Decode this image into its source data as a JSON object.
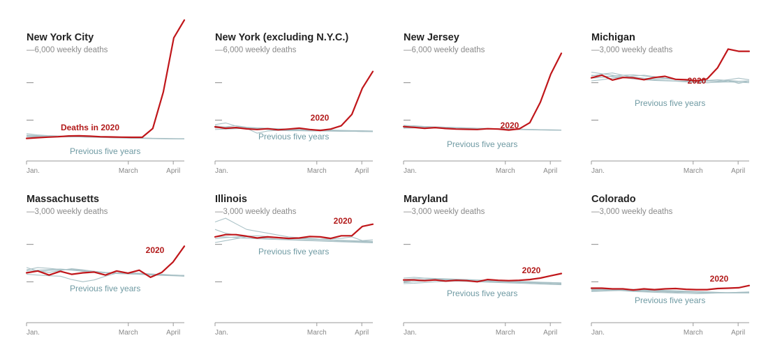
{
  "colors": {
    "current": "#c0161a",
    "previous": "#a9c1c6",
    "axis": "#999999",
    "tick": "#555555"
  },
  "chart_data": [
    {
      "type": "line",
      "title": "New York City",
      "scale_label": "6,000 weekly deaths",
      "ymax": 6000,
      "x_labels": [
        "Jan.",
        "March",
        "April"
      ],
      "current_label": "Deaths in 2020",
      "previous_label": "Previous five years",
      "series": [
        {
          "name": "Deaths in 2020",
          "values": [
            1020,
            1060,
            1090,
            1110,
            1150,
            1160,
            1140,
            1110,
            1100,
            1090,
            1080,
            1080,
            1550,
            3500,
            6400,
            7350
          ]
        },
        {
          "values": [
            1200,
            1170,
            1140,
            1130,
            1120,
            1110,
            1100,
            1080,
            1060,
            1040,
            1030,
            1020,
            1010,
            1000,
            1000,
            1000
          ]
        },
        {
          "values": [
            1150,
            1130,
            1120,
            1110,
            1100,
            1100,
            1090,
            1070,
            1060,
            1050,
            1040,
            1030,
            1020,
            1010,
            1010,
            1000
          ]
        },
        {
          "values": [
            1280,
            1210,
            1170,
            1150,
            1130,
            1110,
            1100,
            1090,
            1080,
            1060,
            1050,
            1040,
            1020,
            1010,
            1000,
            1000
          ]
        },
        {
          "values": [
            1100,
            1100,
            1110,
            1120,
            1110,
            1100,
            1090,
            1080,
            1070,
            1060,
            1050,
            1040,
            1030,
            1020,
            1010,
            1010
          ]
        },
        {
          "values": [
            1180,
            1160,
            1150,
            1140,
            1120,
            1110,
            1090,
            1080,
            1070,
            1050,
            1040,
            1030,
            1020,
            1010,
            1000,
            990
          ]
        }
      ]
    },
    {
      "type": "line",
      "title": "New York (excluding N.Y.C.)",
      "scale_label": "6,000 weekly deaths",
      "ymax": 6000,
      "x_labels": [
        "Jan.",
        "March",
        "April"
      ],
      "current_label": "2020",
      "previous_label": "Previous five years",
      "series": [
        {
          "name": "2020",
          "values": [
            1640,
            1560,
            1600,
            1530,
            1500,
            1540,
            1480,
            1520,
            1570,
            1500,
            1450,
            1520,
            1700,
            2300,
            3700,
            4600
          ]
        },
        {
          "values": [
            1760,
            1850,
            1680,
            1600,
            1550,
            1500,
            1480,
            1460,
            1450,
            1440,
            1450,
            1430,
            1420,
            1400,
            1390,
            1380
          ]
        },
        {
          "values": [
            1600,
            1640,
            1700,
            1620,
            1580,
            1560,
            1520,
            1500,
            1480,
            1470,
            1460,
            1450,
            1440,
            1430,
            1420,
            1400
          ]
        },
        {
          "values": [
            1700,
            1620,
            1580,
            1560,
            1300,
            1420,
            1450,
            1430,
            1430,
            1420,
            1420,
            1410,
            1400,
            1400,
            1390,
            1400
          ]
        },
        {
          "values": [
            1580,
            1600,
            1620,
            1600,
            1580,
            1560,
            1540,
            1520,
            1500,
            1490,
            1480,
            1470,
            1450,
            1440,
            1430,
            1420
          ]
        },
        {
          "values": [
            1500,
            1520,
            1540,
            1560,
            1560,
            1540,
            1520,
            1500,
            1480,
            1470,
            1460,
            1440,
            1430,
            1420,
            1410,
            1400
          ]
        }
      ]
    },
    {
      "type": "line",
      "title": "New Jersey",
      "scale_label": "6,000 weekly deaths",
      "ymax": 6000,
      "x_labels": [
        "Jan.",
        "March",
        "April"
      ],
      "current_label": "2020",
      "previous_label": "Previous five years",
      "series": [
        {
          "name": "2020",
          "values": [
            1650,
            1610,
            1560,
            1600,
            1550,
            1520,
            1510,
            1500,
            1540,
            1520,
            1470,
            1530,
            1860,
            2950,
            4460,
            5570
          ]
        },
        {
          "values": [
            1680,
            1700,
            1660,
            1640,
            1620,
            1600,
            1580,
            1560,
            1550,
            1540,
            1530,
            1520,
            1500,
            1480,
            1470,
            1460
          ]
        },
        {
          "values": [
            1600,
            1620,
            1640,
            1620,
            1600,
            1580,
            1560,
            1540,
            1530,
            1520,
            1510,
            1500,
            1490,
            1480,
            1470,
            1460
          ]
        },
        {
          "values": [
            1720,
            1680,
            1650,
            1630,
            1610,
            1590,
            1570,
            1550,
            1540,
            1530,
            1520,
            1510,
            1500,
            1490,
            1480,
            1470
          ]
        },
        {
          "values": [
            1560,
            1580,
            1600,
            1610,
            1600,
            1580,
            1560,
            1540,
            1520,
            1510,
            1500,
            1490,
            1480,
            1470,
            1460,
            1460
          ]
        },
        {
          "values": [
            1640,
            1650,
            1640,
            1630,
            1620,
            1600,
            1580,
            1560,
            1550,
            1540,
            1520,
            1510,
            1500,
            1490,
            1480,
            1470
          ]
        }
      ]
    },
    {
      "type": "line",
      "title": "Michigan",
      "scale_label": "3,000 weekly deaths",
      "ymax": 3000,
      "x_labels": [
        "Jan.",
        "March",
        "April"
      ],
      "current_label": "2020",
      "previous_label": "Previous five years",
      "series": [
        {
          "name": "2020",
          "values": [
            2130,
            2200,
            2070,
            2140,
            2130,
            2080,
            2140,
            2170,
            2090,
            2080,
            2050,
            2100,
            2400,
            2900,
            2840,
            2840
          ]
        },
        {
          "values": [
            2280,
            2240,
            2200,
            2160,
            2120,
            2100,
            2080,
            2060,
            2050,
            2040,
            2030,
            2060,
            2080,
            2060,
            2040,
            2030
          ]
        },
        {
          "values": [
            2180,
            2230,
            2260,
            2200,
            2150,
            2120,
            2110,
            2100,
            2090,
            2070,
            2060,
            2040,
            2050,
            2080,
            2120,
            2080
          ]
        },
        {
          "values": [
            2050,
            2080,
            2120,
            2150,
            2180,
            2200,
            2160,
            2120,
            2090,
            2060,
            2040,
            2000,
            2020,
            2060,
            1980,
            2040
          ]
        },
        {
          "values": [
            2200,
            2180,
            2160,
            2140,
            2100,
            2080,
            2060,
            2050,
            2040,
            2020,
            2010,
            2000,
            2010,
            2020,
            2010,
            2000
          ]
        },
        {
          "values": [
            2120,
            2140,
            2180,
            2200,
            2210,
            2180,
            2150,
            2120,
            2100,
            2080,
            2060,
            2050,
            2040,
            2030,
            2040,
            2050
          ]
        }
      ]
    },
    {
      "type": "line",
      "title": "Massachusetts",
      "scale_label": "3,000 weekly deaths",
      "ymax": 3000,
      "x_labels": [
        "Jan.",
        "March",
        "April"
      ],
      "current_label": "2020",
      "previous_label": "Previous five years",
      "series": [
        {
          "name": "2020",
          "values": [
            1240,
            1290,
            1180,
            1280,
            1200,
            1240,
            1260,
            1180,
            1290,
            1230,
            1310,
            1120,
            1250,
            1530,
            1950
          ]
        },
        {
          "values": [
            1320,
            1380,
            1360,
            1330,
            1310,
            1280,
            1260,
            1240,
            1220,
            1210,
            1200,
            1180,
            1170,
            1160,
            1150
          ]
        },
        {
          "values": [
            1380,
            1290,
            1250,
            1300,
            1350,
            1320,
            1280,
            1250,
            1230,
            1220,
            1210,
            1200,
            1190,
            1180,
            1170
          ]
        },
        {
          "values": [
            1260,
            1280,
            1300,
            1320,
            1340,
            1300,
            1280,
            1250,
            1240,
            1230,
            1220,
            1210,
            1190,
            1170,
            1160
          ]
        },
        {
          "values": [
            1300,
            1310,
            1330,
            1340,
            1320,
            1290,
            1260,
            1240,
            1220,
            1210,
            1200,
            1190,
            1200,
            1180,
            1170
          ]
        },
        {
          "values": [
            1200,
            1180,
            1160,
            1150,
            1060,
            1000,
            1050,
            1150,
            1230,
            1240,
            1230,
            1210,
            1190,
            1170,
            1150
          ]
        }
      ]
    },
    {
      "type": "line",
      "title": "Illinois",
      "scale_label": "3,000 weekly deaths",
      "ymax": 3000,
      "x_labels": [
        "Jan.",
        "March",
        "April"
      ],
      "current_label": "2020",
      "previous_label": "Previous five years",
      "series": [
        {
          "name": "2020",
          "values": [
            2200,
            2260,
            2260,
            2220,
            2170,
            2200,
            2180,
            2160,
            2170,
            2210,
            2200,
            2160,
            2230,
            2230,
            2480,
            2540
          ]
        },
        {
          "values": [
            2600,
            2700,
            2550,
            2400,
            2350,
            2300,
            2250,
            2200,
            2180,
            2160,
            2140,
            2120,
            2100,
            2090,
            2080,
            2070
          ]
        },
        {
          "values": [
            2400,
            2300,
            2250,
            2200,
            2180,
            2200,
            2190,
            2170,
            2150,
            2140,
            2130,
            2120,
            2110,
            2100,
            2090,
            2080
          ]
        },
        {
          "values": [
            2150,
            2180,
            2200,
            2220,
            2230,
            2210,
            2190,
            2170,
            2160,
            2150,
            2140,
            2150,
            2160,
            2200,
            2100,
            2120
          ]
        },
        {
          "values": [
            2050,
            2100,
            2150,
            2200,
            2180,
            2160,
            2140,
            2130,
            2120,
            2110,
            2100,
            2090,
            2080,
            2070,
            2060,
            2050
          ]
        },
        {
          "values": [
            2200,
            2200,
            2180,
            2160,
            2150,
            2140,
            2130,
            2120,
            2110,
            2100,
            2090,
            2080,
            2070,
            2060,
            2050,
            2040
          ]
        }
      ]
    },
    {
      "type": "line",
      "title": "Maryland",
      "scale_label": "3,000 weekly deaths",
      "ymax": 3000,
      "x_labels": [
        "Jan.",
        "March",
        "April"
      ],
      "current_label": "2020",
      "previous_label": "Previous five years",
      "series": [
        {
          "name": "2020",
          "values": [
            1050,
            1050,
            1030,
            1050,
            1020,
            1040,
            1030,
            1000,
            1060,
            1040,
            1030,
            1040,
            1060,
            1100,
            1160,
            1220
          ]
        },
        {
          "values": [
            1100,
            1120,
            1100,
            1080,
            1070,
            1060,
            1050,
            1040,
            1030,
            1020,
            1010,
            1000,
            990,
            980,
            980,
            970
          ]
        },
        {
          "values": [
            1060,
            1080,
            1100,
            1090,
            1080,
            1070,
            1060,
            1050,
            1040,
            1030,
            1020,
            1010,
            1000,
            990,
            980,
            970
          ]
        },
        {
          "values": [
            980,
            1000,
            1020,
            1040,
            1050,
            1040,
            1030,
            1020,
            1010,
            1000,
            990,
            980,
            970,
            960,
            950,
            940
          ]
        },
        {
          "values": [
            1020,
            1040,
            1060,
            1070,
            1060,
            1050,
            1040,
            1030,
            1020,
            1010,
            1000,
            990,
            980,
            970,
            960,
            950
          ]
        },
        {
          "values": [
            950,
            960,
            980,
            1000,
            1010,
            1020,
            1010,
            1000,
            990,
            980,
            970,
            960,
            950,
            940,
            930,
            920
          ]
        }
      ]
    },
    {
      "type": "line",
      "title": "Colorado",
      "scale_label": "3,000 weekly deaths",
      "ymax": 3000,
      "x_labels": [
        "Jan.",
        "March",
        "April"
      ],
      "current_label": "2020",
      "previous_label": "Previous five years",
      "series": [
        {
          "name": "2020",
          "values": [
            830,
            830,
            810,
            810,
            780,
            810,
            790,
            810,
            820,
            800,
            790,
            790,
            820,
            830,
            840,
            900
          ]
        },
        {
          "values": [
            800,
            810,
            800,
            790,
            780,
            770,
            760,
            750,
            740,
            730,
            720,
            720,
            710,
            710,
            720,
            720
          ]
        },
        {
          "values": [
            760,
            770,
            780,
            790,
            800,
            790,
            780,
            770,
            760,
            750,
            740,
            730,
            720,
            710,
            700,
            700
          ]
        },
        {
          "values": [
            820,
            800,
            780,
            760,
            740,
            730,
            720,
            710,
            700,
            690,
            680,
            690,
            700,
            710,
            720,
            730
          ]
        },
        {
          "values": [
            740,
            750,
            760,
            770,
            780,
            770,
            760,
            750,
            740,
            730,
            720,
            710,
            700,
            700,
            700,
            710
          ]
        },
        {
          "values": [
            780,
            790,
            780,
            770,
            760,
            750,
            740,
            730,
            720,
            720,
            710,
            700,
            700,
            700,
            710,
            720
          ]
        }
      ]
    }
  ]
}
